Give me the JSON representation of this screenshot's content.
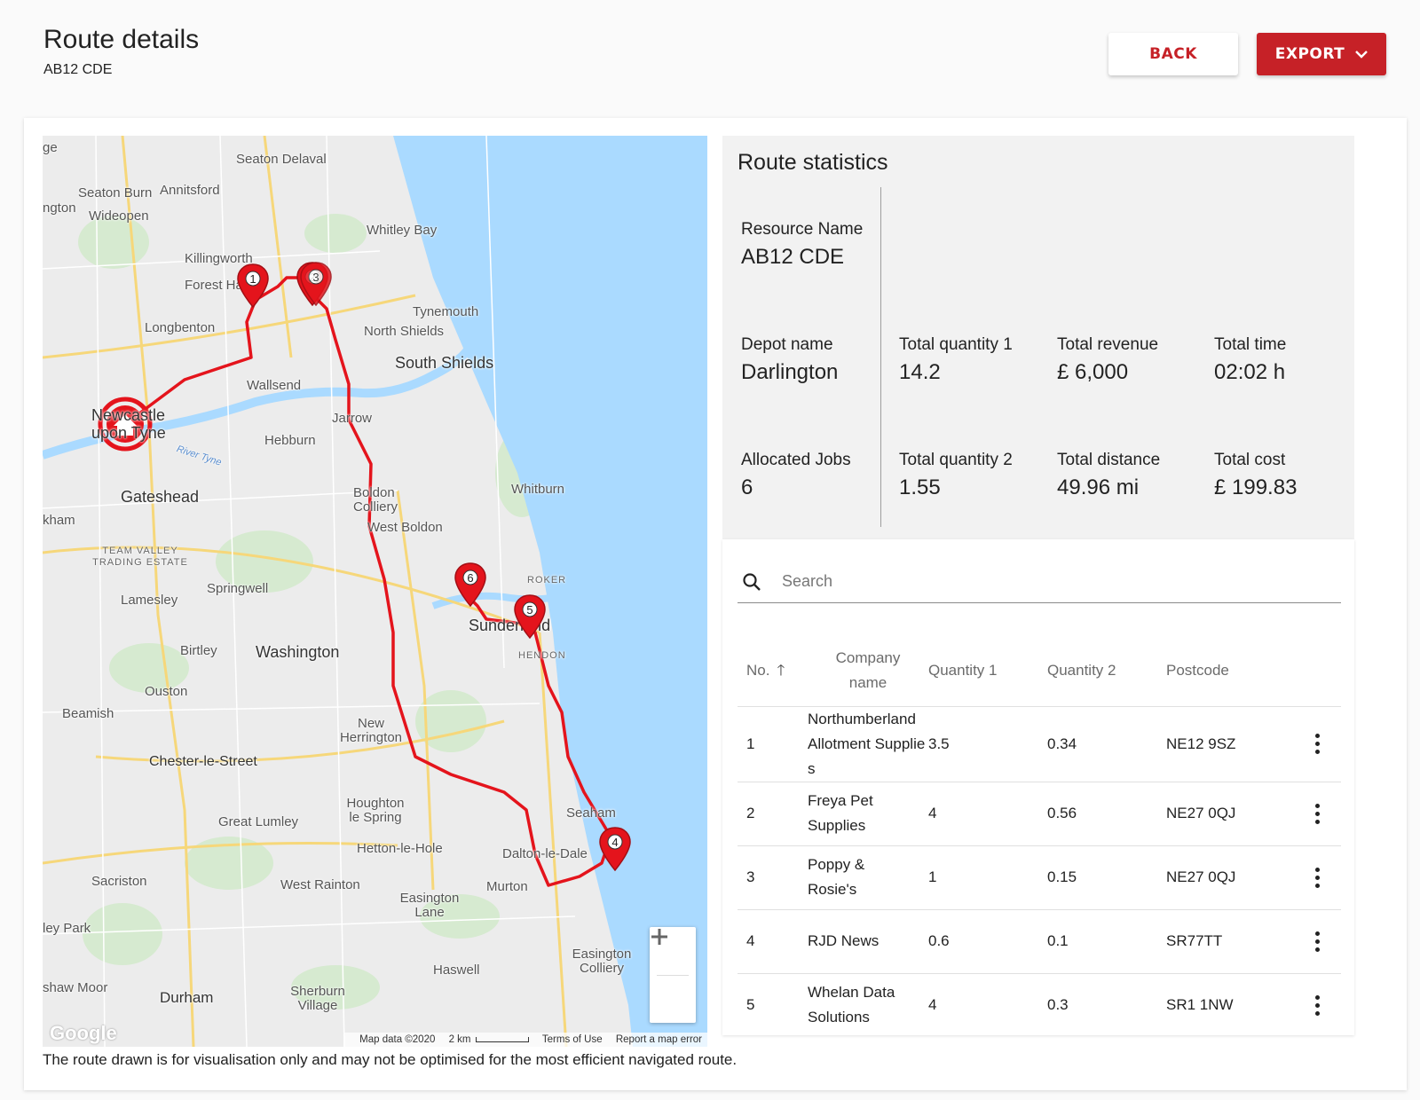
{
  "header": {
    "title": "Route details",
    "subtitle": "AB12 CDE",
    "back_label": "BACK",
    "export_label": "EXPORT"
  },
  "stats": {
    "title": "Route statistics",
    "resource_name_label": "Resource Name",
    "resource_name_value": "AB12 CDE",
    "depot_label": "Depot name",
    "depot_value": "Darlington",
    "qty1_label": "Total quantity 1",
    "qty1_value": "14.2",
    "revenue_label": "Total revenue",
    "revenue_value": "£ 6,000",
    "time_label": "Total time",
    "time_value": "02:02 h",
    "jobs_label": "Allocated Jobs",
    "jobs_value": "6",
    "qty2_label": "Total quantity 2",
    "qty2_value": "1.55",
    "distance_label": "Total distance",
    "distance_value": "49.96 mi",
    "cost_label": "Total cost",
    "cost_value": "£ 199.83"
  },
  "search": {
    "placeholder": "Search"
  },
  "table": {
    "headers": {
      "no": "No.",
      "company": "Company name",
      "q1": "Quantity 1",
      "q2": "Quantity 2",
      "postcode": "Postcode"
    },
    "rows": [
      {
        "no": "1",
        "company": "Northumberland Allotment Supplies",
        "q1": "3.5",
        "q2": "0.34",
        "postcode": "NE12 9SZ"
      },
      {
        "no": "2",
        "company": "Freya Pet Supplies",
        "q1": "4",
        "q2": "0.56",
        "postcode": "NE27 0QJ"
      },
      {
        "no": "3",
        "company": "Poppy & Rosie's",
        "q1": "1",
        "q2": "0.15",
        "postcode": "NE27 0QJ"
      },
      {
        "no": "4",
        "company": "RJD News",
        "q1": "0.6",
        "q2": "0.1",
        "postcode": "SR77TT"
      },
      {
        "no": "5",
        "company": "Whelan Data Solutions",
        "q1": "4",
        "q2": "0.3",
        "postcode": "SR1 1NW"
      }
    ]
  },
  "map": {
    "places": [
      "ge",
      "Seaton Delaval",
      "Seaton Burn",
      "Annitsford",
      "ngton",
      "Wideopen",
      "Whitley Bay",
      "Killingworth",
      "Forest Hall",
      "Tynemouth",
      "North Shields",
      "Longbenton",
      "South Shields",
      "Wallsend",
      "Jarrow",
      "Newcastle upon Tyne",
      "Hebburn",
      "River Tyne",
      "Gateshead",
      "Boldon Colliery",
      "Whitburn",
      "West Boldon",
      "kham",
      "TEAM VALLEY TRADING ESTATE",
      "Springwell",
      "ROKER",
      "Lamesley",
      "Sunderland",
      "Birtley",
      "Washington",
      "HENDON",
      "Ouston",
      "Beamish",
      "New Herrington",
      "Chester-le-Street",
      "Houghton le Spring",
      "Seaham",
      "Great Lumley",
      "Hetton-le-Hole",
      "Dalton-le-Dale",
      "Sacriston",
      "West Rainton",
      "Murton",
      "Easington Lane",
      "ley Park",
      "Haswell",
      "Easington Colliery",
      "shaw Moor",
      "Durham",
      "Sherburn Village"
    ],
    "markers": [
      "1",
      "2",
      "3",
      "4",
      "5",
      "6"
    ],
    "google": "Google",
    "attribution": "Map data ©2020",
    "scale": "2 km",
    "terms": "Terms of Use",
    "report": "Report a map error",
    "route_color": "#e4141c",
    "water_color": "#aadaff"
  },
  "disclaimer": "The route drawn is for visualisation only and may not be optimised for the most efficient navigated route."
}
